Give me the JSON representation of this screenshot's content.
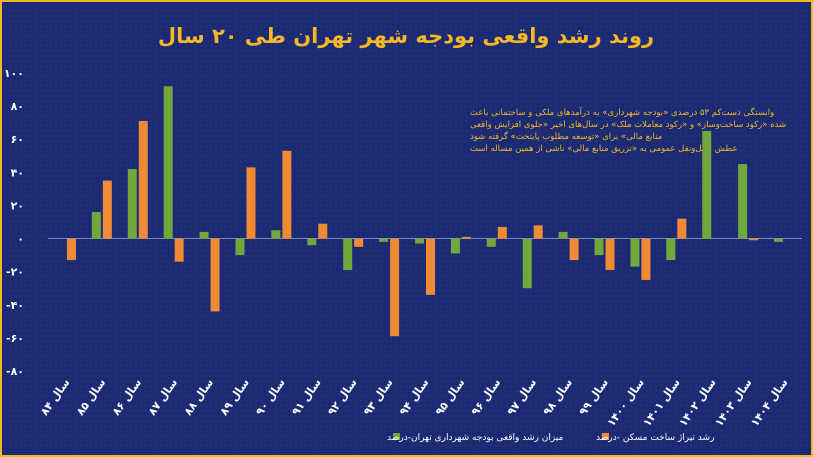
{
  "chart_data": {
    "type": "bar",
    "title": "روند رشد واقعی بودجه شهر تهران طی ۲۰ سال",
    "categories": [
      "سال ۸۴",
      "سال ۸۵",
      "سال ۸۶",
      "سال ۸۷",
      "سال ۸۸",
      "سال ۸۹",
      "سال ۹۰",
      "سال ۹۱",
      "سال ۹۲",
      "سال ۹۳",
      "سال ۹۴",
      "سال ۹۵",
      "سال ۹۶",
      "سال ۹۷",
      "سال ۹۸",
      "سال ۹۹",
      "سال ۱۴۰۰",
      "سال ۱۴۰۱",
      "سال ۱۴۰۲",
      "سال ۱۴۰۳",
      "سال ۱۴۰۴"
    ],
    "series": [
      {
        "name": "میزان رشد واقعی بودجه شهرداری تهران-درصد",
        "color": "#70a83c",
        "values": [
          0,
          16,
          42,
          92,
          4,
          -10,
          5,
          -4,
          -19,
          -2,
          -3,
          -9,
          -5,
          -30,
          4,
          -10,
          -17,
          -13,
          65,
          45,
          -2
        ]
      },
      {
        "name": "رشد تیراژ ساخت مسکن -درصد",
        "color": "#f08a35",
        "values": [
          -13,
          35,
          71,
          -14,
          -44,
          43,
          53,
          9,
          -5,
          -59,
          -34,
          1,
          7,
          8,
          -13,
          -19,
          -25,
          12,
          0,
          -1,
          0
        ]
      }
    ],
    "ylim": [
      -80,
      100
    ],
    "yticks": [
      "-۸۰",
      "-۶۰",
      "-۴۰",
      "-۲۰",
      "۰",
      "۲۰",
      "۴۰",
      "۶۰",
      "۸۰",
      "۱۰۰"
    ],
    "annotation_lines": [
      "وابستگی دست‌کم ۵۳ درصدی «بودجه شهرداری» به درآمدهای ملکی و ساختمانی باعث",
      "شده «رکود ساخت‌وساز» و «رکود معاملات ملک» در سال‌های اخیر «جلوی افزایش واقعی",
      "منابع مالی» برای «توسعه مطلوب پایتخت» گرفته شود",
      "عطش حمل‌ونقل عمومی به «تزریق منابع مالی» ناشی از همین مساله است"
    ],
    "legend_position": "bottom",
    "grid": false,
    "colors": {
      "background": "#1b2a73",
      "title": "#f5b825",
      "annotation": "#f5b825",
      "text": "#ffffff"
    }
  }
}
